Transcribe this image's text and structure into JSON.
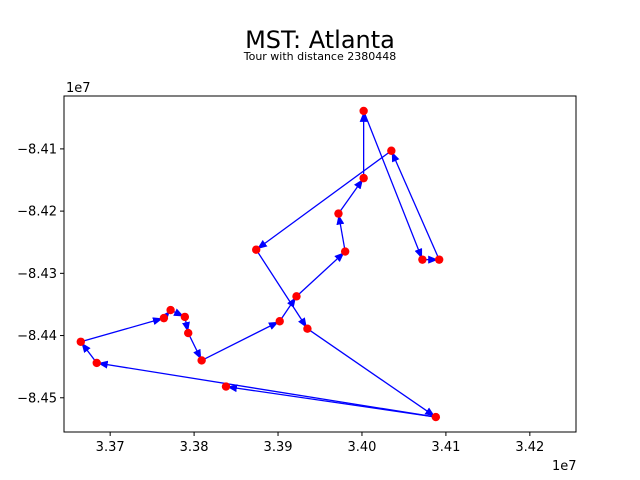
{
  "chart_data": {
    "type": "scatter",
    "title": "MST: Atlanta",
    "subtitle": "Tour with distance 2380448",
    "xlabel": "",
    "ylabel": "",
    "x_offset_label": "1e7",
    "y_offset_label": "1e7",
    "xlim": [
      3.3645,
      3.4255
    ],
    "ylim": [
      -8.4555,
      -8.4015
    ],
    "x_ticks": [
      3.37,
      3.38,
      3.39,
      3.4,
      3.41,
      3.42
    ],
    "x_tick_labels": [
      "3.37",
      "3.38",
      "3.39",
      "3.40",
      "3.41",
      "3.42"
    ],
    "y_ticks": [
      -8.41,
      -8.42,
      -8.43,
      -8.44,
      -8.45
    ],
    "y_tick_labels": [
      "−8.41",
      "−8.42",
      "−8.43",
      "−8.44",
      "−8.45"
    ],
    "grid": false,
    "point_color": "#ff0000",
    "edge_color": "#0000ff",
    "points": [
      {
        "x": 3.4035,
        "y": -8.4103
      },
      {
        "x": 3.4002,
        "y": -8.4039
      },
      {
        "x": 3.4072,
        "y": -8.4278
      },
      {
        "x": 3.4092,
        "y": -8.4278
      },
      {
        "x": 3.4002,
        "y": -8.4147
      },
      {
        "x": 3.3972,
        "y": -8.4204
      },
      {
        "x": 3.398,
        "y": -8.4265
      },
      {
        "x": 3.3922,
        "y": -8.4337
      },
      {
        "x": 3.3874,
        "y": -8.4262
      },
      {
        "x": 3.3935,
        "y": -8.4389
      },
      {
        "x": 3.4088,
        "y": -8.4531
      },
      {
        "x": 3.3838,
        "y": -8.4482
      },
      {
        "x": 3.3684,
        "y": -8.4444
      },
      {
        "x": 3.3665,
        "y": -8.441
      },
      {
        "x": 3.3764,
        "y": -8.4372
      },
      {
        "x": 3.3772,
        "y": -8.4359
      },
      {
        "x": 3.3789,
        "y": -8.437
      },
      {
        "x": 3.3793,
        "y": -8.4396
      },
      {
        "x": 3.3809,
        "y": -8.444
      },
      {
        "x": 3.3902,
        "y": -8.4377
      }
    ],
    "edges": [
      [
        3.4035,
        -8.4103,
        3.3874,
        -8.4262
      ],
      [
        3.3874,
        -8.4262,
        3.3935,
        -8.4389
      ],
      [
        3.3935,
        -8.4389,
        3.4088,
        -8.4531
      ],
      [
        3.4088,
        -8.4531,
        3.3838,
        -8.4482
      ],
      [
        3.4088,
        -8.4531,
        3.3684,
        -8.4444
      ],
      [
        3.3665,
        -8.441,
        3.3764,
        -8.4372
      ],
      [
        3.3684,
        -8.4444,
        3.3665,
        -8.441
      ],
      [
        3.3764,
        -8.4372,
        3.3772,
        -8.4359
      ],
      [
        3.3772,
        -8.4359,
        3.3789,
        -8.437
      ],
      [
        3.3789,
        -8.437,
        3.3793,
        -8.4396
      ],
      [
        3.3793,
        -8.4396,
        3.3809,
        -8.444
      ],
      [
        3.3809,
        -8.444,
        3.3902,
        -8.4377
      ],
      [
        3.3902,
        -8.4377,
        3.3922,
        -8.4337
      ],
      [
        3.3922,
        -8.4337,
        3.398,
        -8.4265
      ],
      [
        3.398,
        -8.4265,
        3.3972,
        -8.4204
      ],
      [
        3.3972,
        -8.4204,
        3.4002,
        -8.4147
      ],
      [
        3.4002,
        -8.4147,
        3.4002,
        -8.4039
      ],
      [
        3.4002,
        -8.4039,
        3.4072,
        -8.4278
      ],
      [
        3.4072,
        -8.4278,
        3.4092,
        -8.4278
      ],
      [
        3.4092,
        -8.4278,
        3.4035,
        -8.4103
      ]
    ]
  }
}
